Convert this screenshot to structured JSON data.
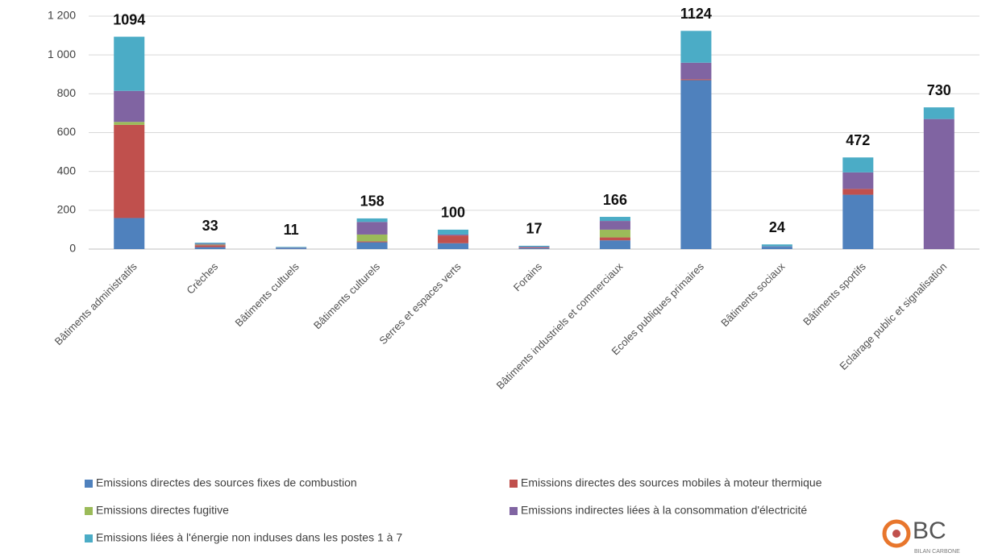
{
  "chart_data": {
    "type": "stacked_bar",
    "categories": [
      "Bâtiments administratifs",
      "Crèches",
      "Bâtiments cultuels",
      "Bâtiments culturels",
      "Serres et espaces verts",
      "Forains",
      "Bâtiments industriels et commerciaux",
      "Ecoles publiques primaires",
      "Bâtiments sociaux",
      "Bâtiments sportifs",
      "Eclairage public et signalisation"
    ],
    "series": [
      {
        "name": "Emissions directes des sources fixes de combustion",
        "color": "#4f81bd",
        "values": [
          160,
          10,
          4,
          35,
          30,
          5,
          45,
          870,
          12,
          280,
          0
        ]
      },
      {
        "name": "Emissions directes des sources mobiles à moteur thermique",
        "color": "#c0504d",
        "values": [
          480,
          10,
          0,
          5,
          40,
          3,
          15,
          5,
          0,
          30,
          0
        ]
      },
      {
        "name": "Emissions directes fugitive",
        "color": "#9bbb59",
        "values": [
          15,
          3,
          0,
          35,
          0,
          0,
          40,
          0,
          0,
          0,
          0
        ]
      },
      {
        "name": "Emissions indirectes liées à la consommation d'électricité",
        "color": "#8064a2",
        "values": [
          160,
          5,
          3,
          65,
          5,
          4,
          45,
          85,
          2,
          85,
          670
        ]
      },
      {
        "name": "Emissions liées à l'énergie non induses dans les postes 1 à 7",
        "color": "#4bacc6",
        "values": [
          279,
          5,
          4,
          18,
          25,
          5,
          21,
          164,
          10,
          77,
          60
        ]
      }
    ],
    "totals": [
      1094,
      33,
      11,
      158,
      100,
      17,
      166,
      1124,
      24,
      472,
      730
    ],
    "ylim": [
      0,
      1200
    ],
    "yticks": [
      0,
      200,
      400,
      600,
      800,
      {
        "value": 1000,
        "label": "1 000"
      },
      {
        "value": 1200,
        "label": "1 200"
      }
    ],
    "grid": true,
    "logo": {
      "text": "BC",
      "subtext": "BILAN CARBONE"
    }
  }
}
